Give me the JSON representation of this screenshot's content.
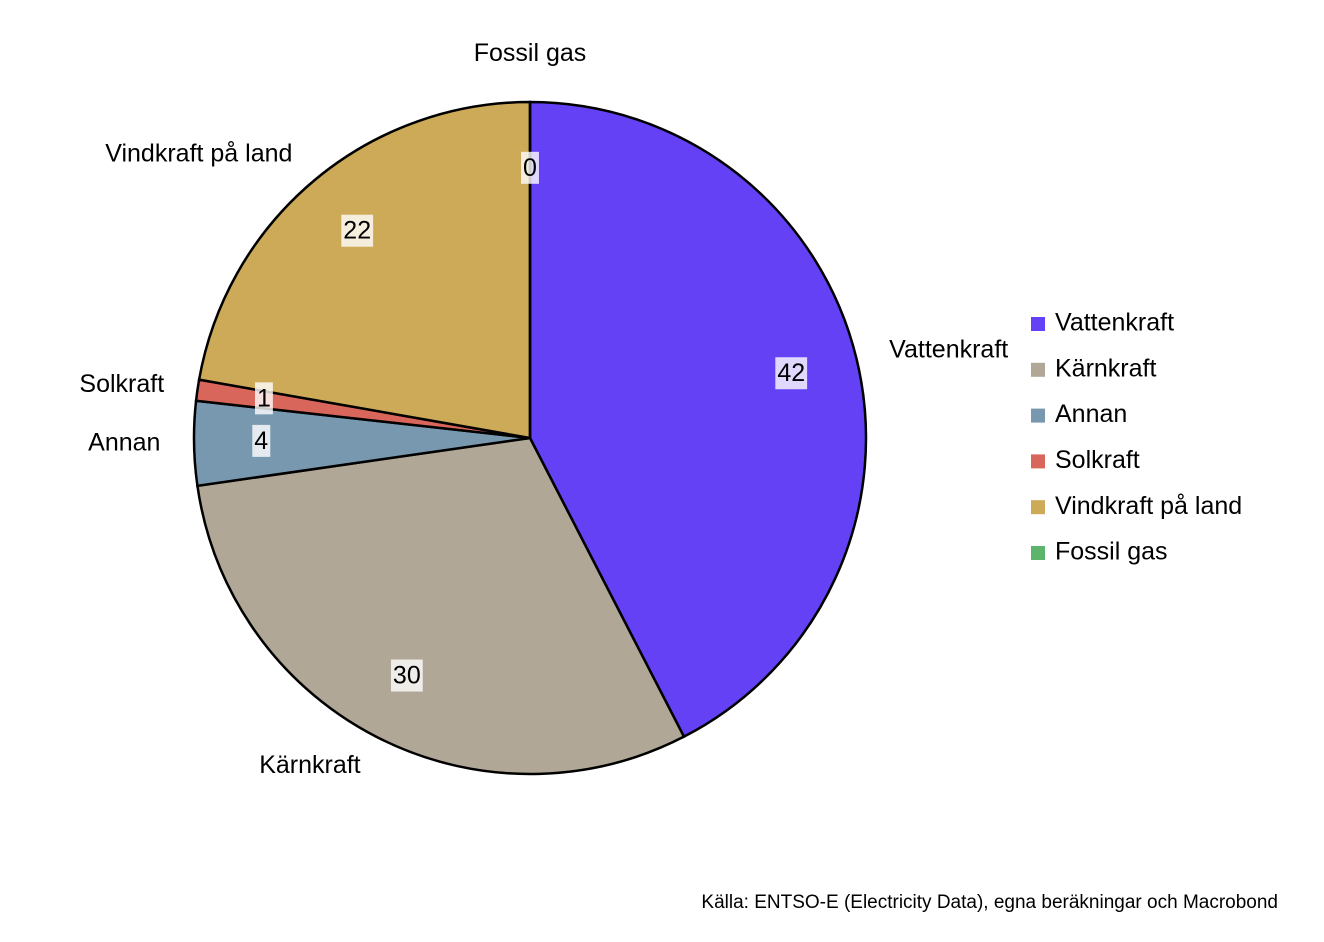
{
  "chart_data": {
    "type": "pie",
    "categories": [
      "Vattenkraft",
      "Kärnkraft",
      "Annan",
      "Solkraft",
      "Vindkraft på land",
      "Fossil gas"
    ],
    "values": [
      42,
      30,
      4,
      1,
      22,
      0
    ],
    "colors": [
      "#6541f5",
      "#b0a796",
      "#7798ae",
      "#d9665a",
      "#ccaa58",
      "#5db56d"
    ],
    "legend": "right",
    "source": "Källa: ENTSO-E (Electricity Data), egna beräkningar  och Macrobond"
  }
}
